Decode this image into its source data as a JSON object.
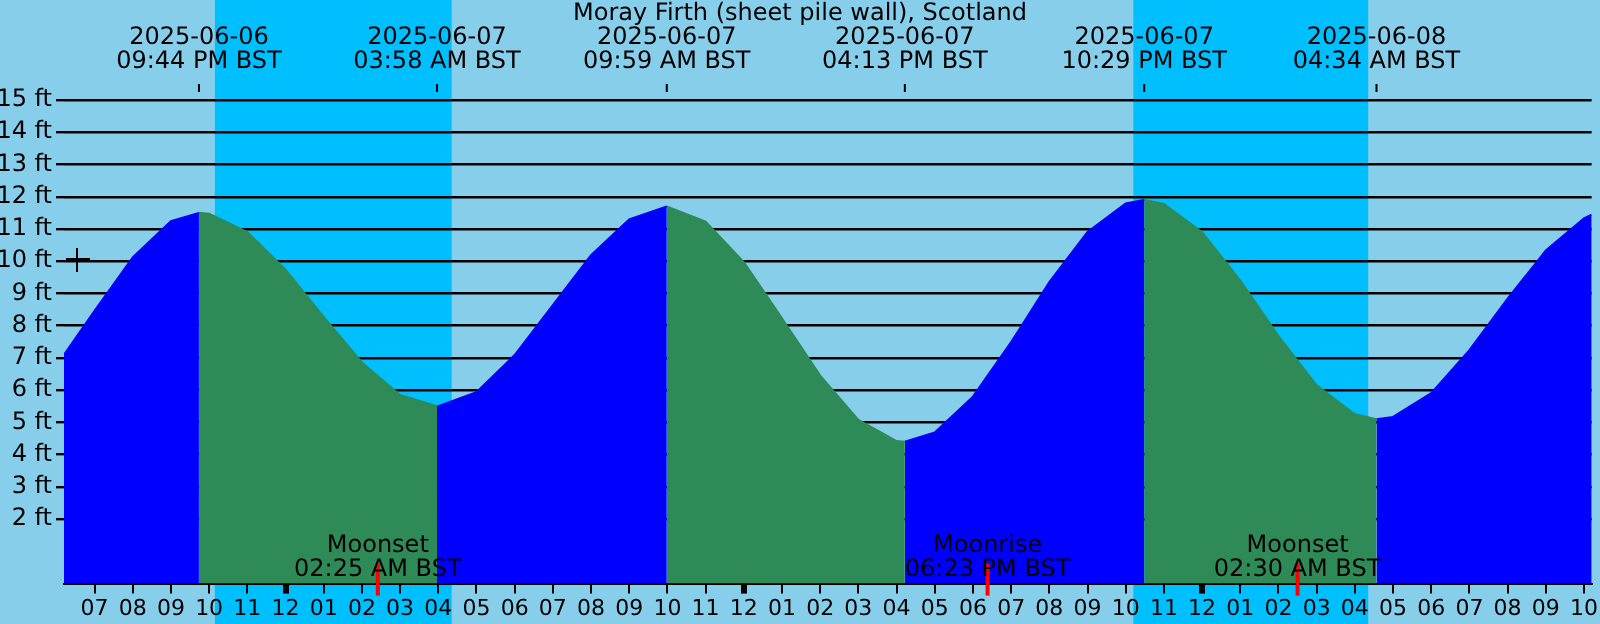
{
  "chart_data": {
    "type": "area",
    "title": "Moray Firth (sheet pile wall), Scotland",
    "xlim": [
      "2025-06-06T18:12",
      "2025-06-08T10:12"
    ],
    "ylim": [
      0,
      15
    ],
    "xticks": [
      {
        "value": "2025-06-06T19:00",
        "label": "07"
      },
      {
        "value": "2025-06-06T20:00",
        "label": "08"
      },
      {
        "value": "2025-06-06T21:00",
        "label": "09"
      },
      {
        "value": "2025-06-06T22:00",
        "label": "10"
      },
      {
        "value": "2025-06-06T23:00",
        "label": "11"
      },
      {
        "value": "2025-06-07T00:00",
        "label": "12"
      },
      {
        "value": "2025-06-07T01:00",
        "label": "01"
      },
      {
        "value": "2025-06-07T02:00",
        "label": "02"
      },
      {
        "value": "2025-06-07T03:00",
        "label": "03"
      },
      {
        "value": "2025-06-07T04:00",
        "label": "04"
      },
      {
        "value": "2025-06-07T05:00",
        "label": "05"
      },
      {
        "value": "2025-06-07T06:00",
        "label": "06"
      },
      {
        "value": "2025-06-07T07:00",
        "label": "07"
      },
      {
        "value": "2025-06-07T08:00",
        "label": "08"
      },
      {
        "value": "2025-06-07T09:00",
        "label": "09"
      },
      {
        "value": "2025-06-07T10:00",
        "label": "10"
      },
      {
        "value": "2025-06-07T11:00",
        "label": "11"
      },
      {
        "value": "2025-06-07T12:00",
        "label": "12"
      },
      {
        "value": "2025-06-07T13:00",
        "label": "01"
      },
      {
        "value": "2025-06-07T14:00",
        "label": "02"
      },
      {
        "value": "2025-06-07T15:00",
        "label": "03"
      },
      {
        "value": "2025-06-07T16:00",
        "label": "04"
      },
      {
        "value": "2025-06-07T17:00",
        "label": "05"
      },
      {
        "value": "2025-06-07T18:00",
        "label": "06"
      },
      {
        "value": "2025-06-07T19:00",
        "label": "07"
      },
      {
        "value": "2025-06-07T20:00",
        "label": "08"
      },
      {
        "value": "2025-06-07T21:00",
        "label": "09"
      },
      {
        "value": "2025-06-07T22:00",
        "label": "10"
      },
      {
        "value": "2025-06-07T23:00",
        "label": "11"
      },
      {
        "value": "2025-06-08T00:00",
        "label": "12"
      },
      {
        "value": "2025-06-08T01:00",
        "label": "01"
      },
      {
        "value": "2025-06-08T02:00",
        "label": "02"
      },
      {
        "value": "2025-06-08T03:00",
        "label": "03"
      },
      {
        "value": "2025-06-08T04:00",
        "label": "04"
      },
      {
        "value": "2025-06-08T05:00",
        "label": "05"
      },
      {
        "value": "2025-06-08T06:00",
        "label": "06"
      },
      {
        "value": "2025-06-08T07:00",
        "label": "07"
      },
      {
        "value": "2025-06-08T08:00",
        "label": "08"
      },
      {
        "value": "2025-06-08T09:00",
        "label": "09"
      },
      {
        "value": "2025-06-08T10:00",
        "label": "10"
      }
    ],
    "yticks": [
      {
        "value": 2,
        "label": "2 ft"
      },
      {
        "value": 3,
        "label": "3 ft"
      },
      {
        "value": 4,
        "label": "4 ft"
      },
      {
        "value": 5,
        "label": "5 ft"
      },
      {
        "value": 6,
        "label": "6 ft"
      },
      {
        "value": 7,
        "label": "7 ft"
      },
      {
        "value": 8,
        "label": "8 ft"
      },
      {
        "value": 9,
        "label": "9 ft"
      },
      {
        "value": 10,
        "label": "10 ft"
      },
      {
        "value": 11,
        "label": "11 ft"
      },
      {
        "value": 12,
        "label": "12 ft"
      },
      {
        "value": 13,
        "label": "13 ft"
      },
      {
        "value": 14,
        "label": "14 ft"
      },
      {
        "value": 15,
        "label": "15 ft"
      }
    ],
    "grid": "y",
    "legend": false,
    "series": [
      {
        "color": "#0000ff",
        "x": [
          "2025-06-06T18:12",
          "2025-06-06T19:00",
          "2025-06-06T20:00",
          "2025-06-06T21:00",
          "2025-06-06T21:44"
        ],
        "values": [
          7.1,
          8.46,
          10.12,
          11.24,
          11.5
        ]
      },
      {
        "color": "#2e8b57",
        "x": [
          "2025-06-06T21:44",
          "2025-06-06T22:00",
          "2025-06-06T23:00",
          "2025-06-07T00:00",
          "2025-06-07T01:00",
          "2025-06-07T02:00",
          "2025-06-07T03:00",
          "2025-06-07T03:58"
        ],
        "values": [
          11.5,
          11.47,
          10.9,
          9.74,
          8.27,
          6.86,
          5.85,
          5.5
        ]
      },
      {
        "color": "#0000ff",
        "x": [
          "2025-06-07T03:58",
          "2025-06-07T04:00",
          "2025-06-07T05:00",
          "2025-06-07T06:00",
          "2025-06-07T07:00",
          "2025-06-07T08:00",
          "2025-06-07T09:00",
          "2025-06-07T09:59"
        ],
        "values": [
          5.5,
          5.5,
          5.94,
          7.09,
          8.64,
          10.19,
          11.3,
          11.7
        ]
      },
      {
        "color": "#2e8b57",
        "x": [
          "2025-06-07T09:59",
          "2025-06-07T11:00",
          "2025-06-07T12:00",
          "2025-06-07T13:00",
          "2025-06-07T14:00",
          "2025-06-07T15:00",
          "2025-06-07T16:00",
          "2025-06-07T16:13"
        ],
        "values": [
          11.7,
          11.23,
          9.97,
          8.23,
          6.45,
          5.08,
          4.42,
          4.4
        ]
      },
      {
        "color": "#0000ff",
        "x": [
          "2025-06-07T16:13",
          "2025-06-07T17:00",
          "2025-06-07T18:00",
          "2025-06-07T19:00",
          "2025-06-07T20:00",
          "2025-06-07T21:00",
          "2025-06-07T22:00",
          "2025-06-07T22:29"
        ],
        "values": [
          4.4,
          4.69,
          5.8,
          7.49,
          9.35,
          10.91,
          11.79,
          11.9
        ]
      },
      {
        "color": "#2e8b57",
        "x": [
          "2025-06-07T22:29",
          "2025-06-07T23:00",
          "2025-06-08T00:00",
          "2025-06-08T01:00",
          "2025-06-08T02:00",
          "2025-06-08T03:00",
          "2025-06-08T04:00",
          "2025-06-08T04:34"
        ],
        "values": [
          11.9,
          11.78,
          10.9,
          9.4,
          7.68,
          6.15,
          5.25,
          5.1
        ]
      },
      {
        "color": "#0000ff",
        "x": [
          "2025-06-08T04:34",
          "2025-06-08T05:00",
          "2025-06-08T06:00",
          "2025-06-08T07:00",
          "2025-06-08T08:00",
          "2025-06-08T09:00",
          "2025-06-08T10:00",
          "2025-06-08T10:12"
        ],
        "values": [
          5.1,
          5.17,
          5.91,
          7.24,
          8.84,
          10.33,
          11.33,
          11.44
        ]
      }
    ],
    "bands": [
      {
        "axis": "x",
        "from": "2025-06-06T22:09",
        "to": "2025-06-07T04:21",
        "color": "#00bfff"
      },
      {
        "axis": "x",
        "from": "2025-06-07T22:12",
        "to": "2025-06-08T04:21",
        "color": "#00bfff"
      }
    ],
    "ref_lines": [
      {
        "axis": "x",
        "value": "2025-06-06T21:44",
        "label": "2025-06-06\n09:44 PM BST"
      },
      {
        "axis": "x",
        "value": "2025-06-07T03:58",
        "label": "2025-06-07\n03:58 AM BST"
      },
      {
        "axis": "x",
        "value": "2025-06-07T09:59",
        "label": "2025-06-07\n09:59 AM BST"
      },
      {
        "axis": "x",
        "value": "2025-06-07T16:13",
        "label": "2025-06-07\n04:13 PM BST"
      },
      {
        "axis": "x",
        "value": "2025-06-07T22:29",
        "label": "2025-06-07\n10:29 PM BST"
      },
      {
        "axis": "x",
        "value": "2025-06-08T04:34",
        "label": "2025-06-08\n04:34 AM BST"
      },
      {
        "axis": "x",
        "value": "2025-06-07T02:25",
        "label": "Moonset\n02:25 AM BST",
        "color": "#ff0000"
      },
      {
        "axis": "x",
        "value": "2025-06-07T18:23",
        "label": "Moonrise\n06:23 PM BST",
        "color": "#ff0000"
      },
      {
        "axis": "x",
        "value": "2025-06-08T02:30",
        "label": "Moonset\n02:30 AM BST",
        "color": "#ff0000"
      }
    ]
  }
}
